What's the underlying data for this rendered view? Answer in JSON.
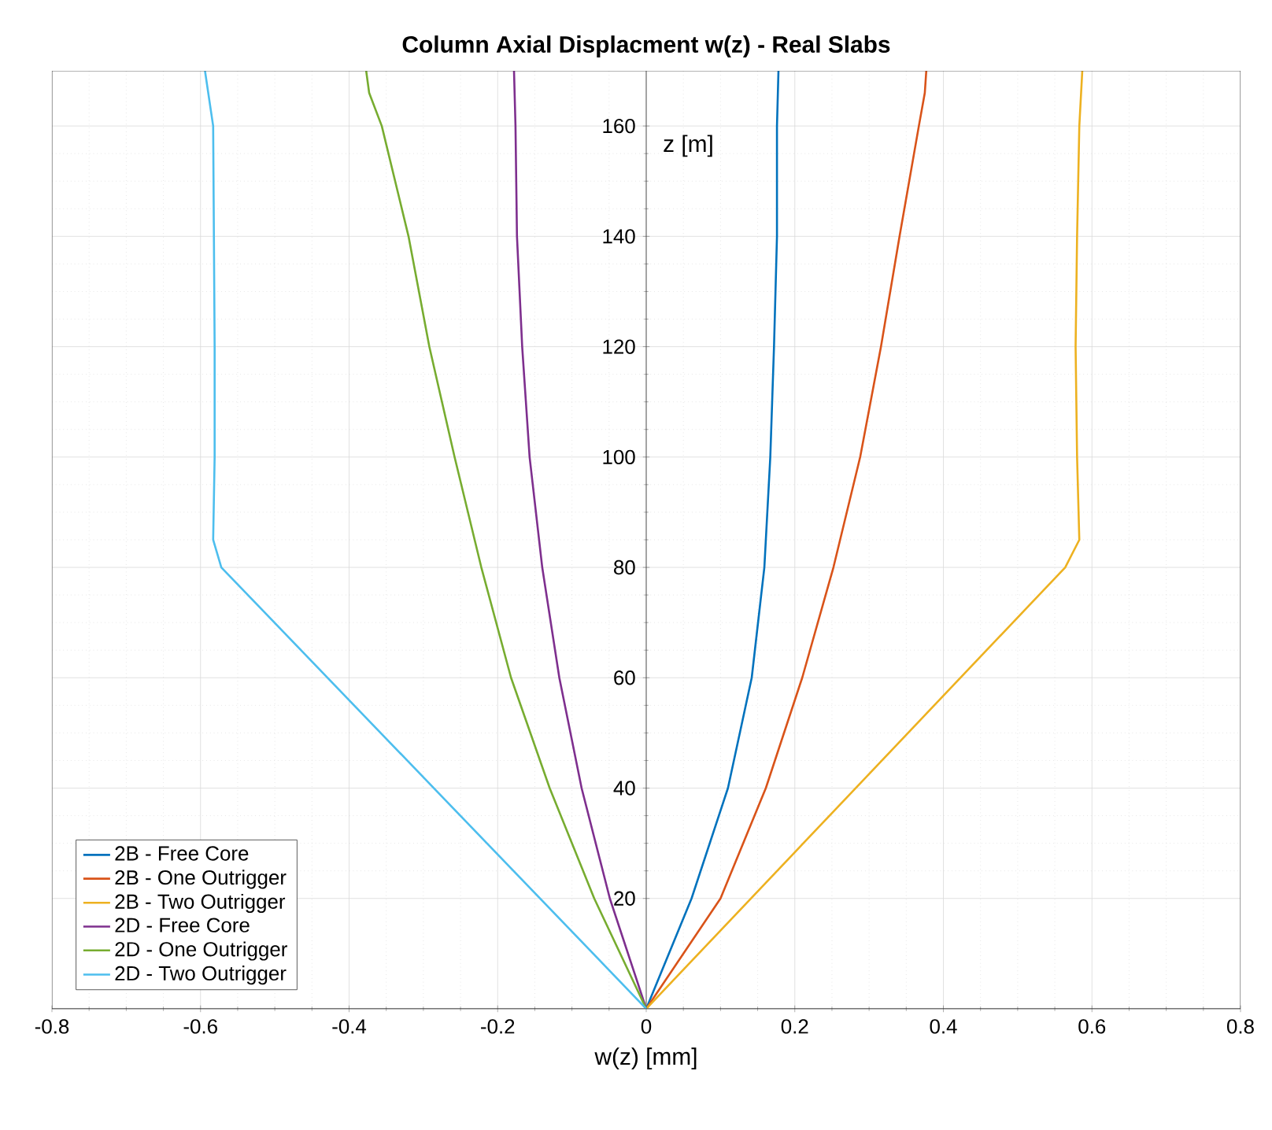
{
  "chart_data": {
    "type": "line",
    "title": "Column Axial Displacment w(z) - Real Slabs",
    "xlabel": "w(z) [mm]",
    "ylabel": "z [m]",
    "xlim": [
      -0.8,
      0.8
    ],
    "ylim": [
      0,
      170
    ],
    "xticks": [
      -0.8,
      -0.6,
      -0.4,
      -0.2,
      0,
      0.2,
      0.4,
      0.6,
      0.8
    ],
    "yticks": [
      20,
      40,
      60,
      80,
      100,
      120,
      140,
      160
    ],
    "grid": true,
    "legend": "bottom left",
    "series": [
      {
        "name": "2B - Free Core",
        "color": "#0072bd",
        "x": [
          0,
          0.061,
          0.11,
          0.142,
          0.159,
          0.167,
          0.172,
          0.176,
          0.176,
          0.178
        ],
        "values": [
          0,
          20,
          40,
          60,
          80,
          100,
          120,
          140,
          160,
          170
        ]
      },
      {
        "name": "2B - One Outrigger",
        "color": "#d95319",
        "x": [
          0,
          0.1,
          0.161,
          0.21,
          0.252,
          0.288,
          0.316,
          0.341,
          0.367,
          0.375,
          0.377
        ],
        "values": [
          0,
          20,
          40,
          60,
          80,
          100,
          120,
          140,
          160,
          166,
          170
        ]
      },
      {
        "name": "2B - Two Outrigger",
        "color": "#edb120",
        "x": [
          0,
          0.564,
          0.583,
          0.58,
          0.578,
          0.58,
          0.583,
          0.587
        ],
        "values": [
          0,
          80,
          85,
          100,
          120,
          140,
          160,
          170
        ]
      },
      {
        "name": "2D - Free Core",
        "color": "#7e2f8e",
        "x": [
          0,
          -0.049,
          -0.087,
          -0.117,
          -0.14,
          -0.157,
          -0.167,
          -0.174,
          -0.176,
          -0.178
        ],
        "values": [
          0,
          20,
          40,
          60,
          80,
          100,
          120,
          140,
          160,
          170
        ]
      },
      {
        "name": "2D - One Outrigger",
        "color": "#77ac30",
        "x": [
          0,
          -0.07,
          -0.13,
          -0.182,
          -0.222,
          -0.258,
          -0.292,
          -0.32,
          -0.356,
          -0.373,
          -0.377
        ],
        "values": [
          0,
          20,
          40,
          60,
          80,
          100,
          120,
          140,
          160,
          166,
          170
        ]
      },
      {
        "name": "2D - Two Outrigger",
        "color": "#4dbeee",
        "x": [
          0,
          -0.572,
          -0.583,
          -0.581,
          -0.581,
          -0.582,
          -0.583,
          -0.594
        ],
        "values": [
          0,
          80,
          85,
          100,
          120,
          140,
          160,
          170
        ]
      }
    ]
  }
}
